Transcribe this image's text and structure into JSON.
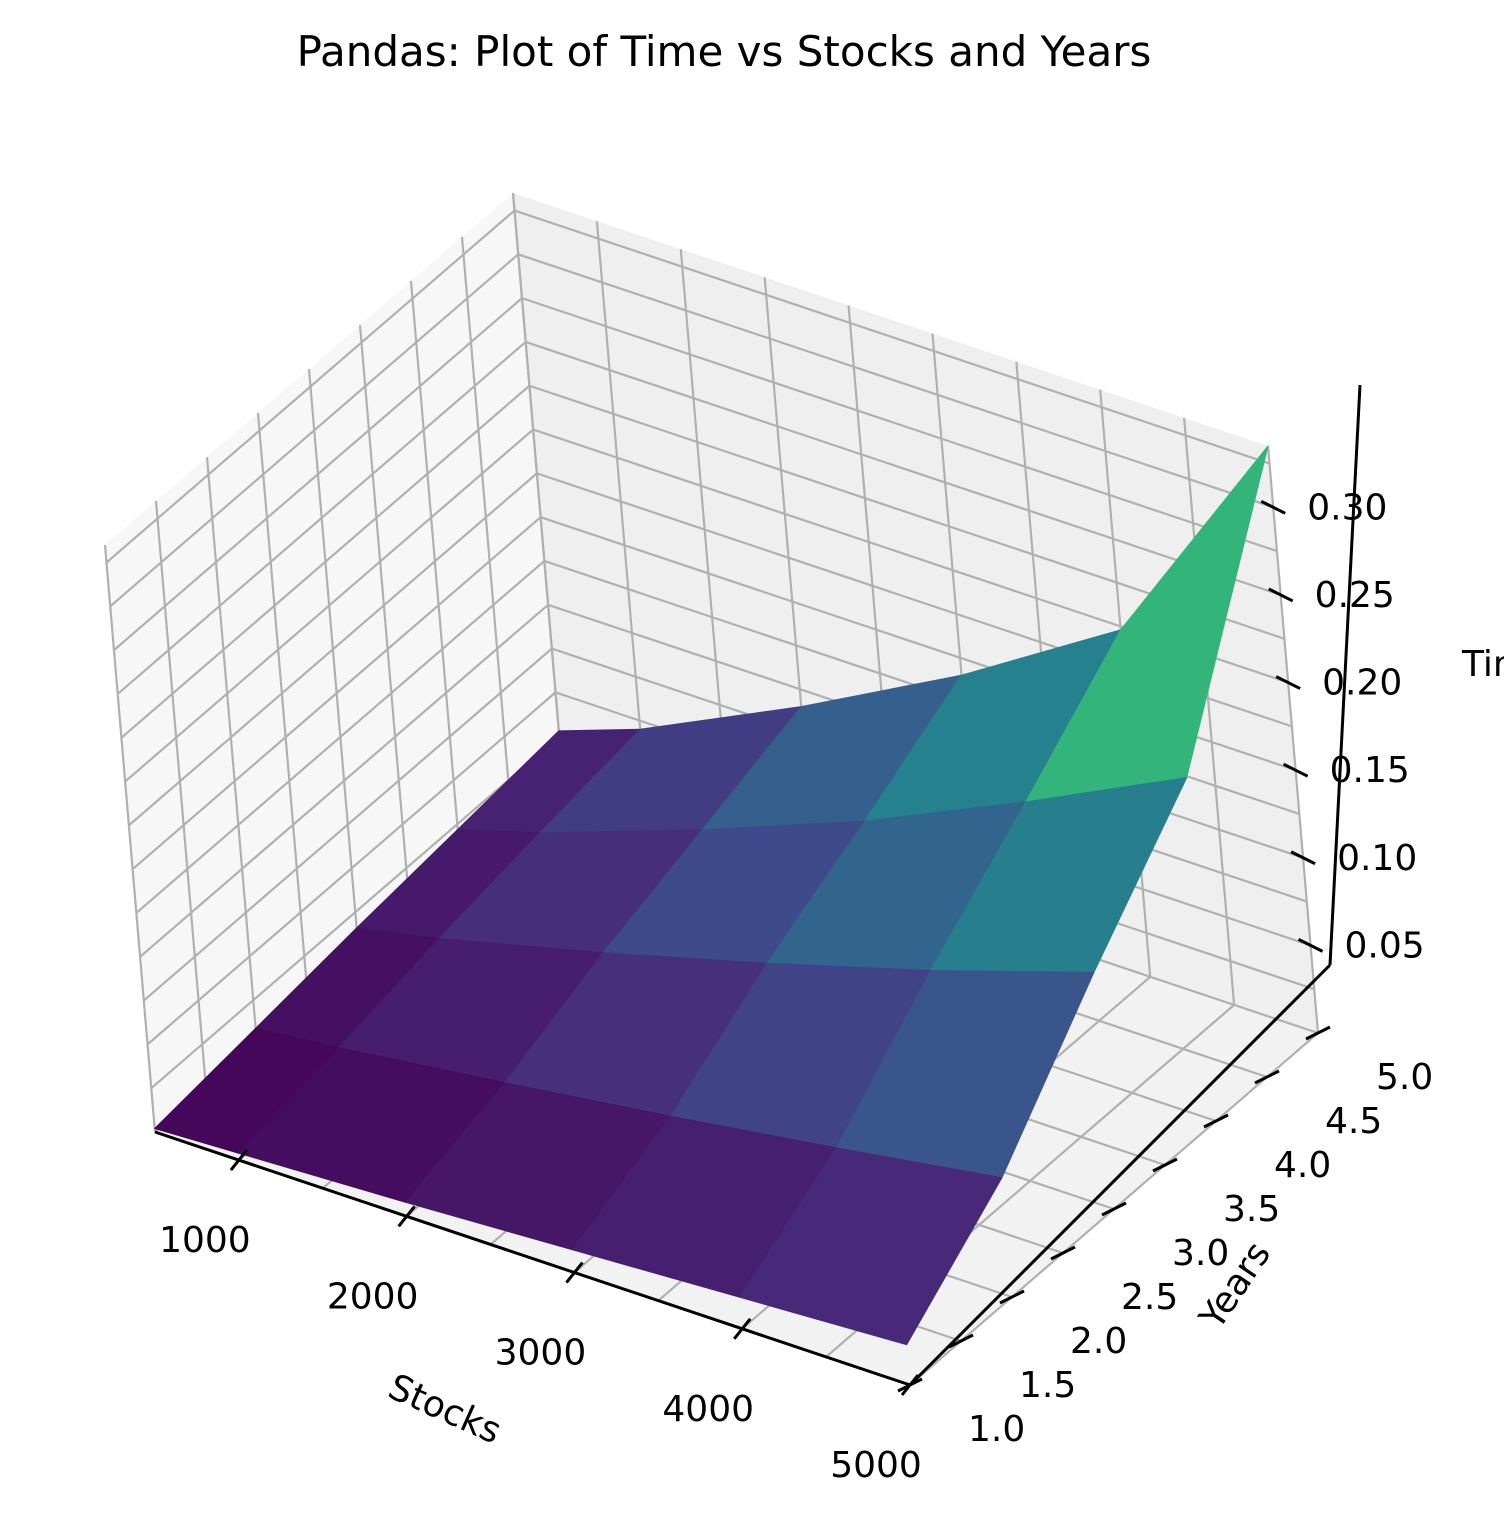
{
  "chart_data": {
    "type": "surface",
    "title": "Pandas: Plot of Time vs Stocks and Years",
    "xlabel": "Stocks",
    "ylabel": "Years",
    "zlabel": "Time",
    "colormap": "viridis",
    "stocks": [
      500,
      1000,
      2000,
      3000,
      4000,
      5000
    ],
    "years": [
      1,
      2,
      3,
      4,
      5
    ],
    "time": [
      [
        0.002,
        0.004,
        0.008,
        0.013,
        0.018,
        0.023
      ],
      [
        0.009,
        0.014,
        0.026,
        0.039,
        0.053,
        0.068
      ],
      [
        0.016,
        0.026,
        0.05,
        0.076,
        0.104,
        0.135
      ],
      [
        0.022,
        0.036,
        0.07,
        0.107,
        0.15,
        0.196
      ],
      [
        0.028,
        0.045,
        0.09,
        0.14,
        0.198,
        0.335
      ]
    ],
    "x_ticks": [
      "1000",
      "2000",
      "3000",
      "4000",
      "5000"
    ],
    "y_ticks": [
      "1.0",
      "1.5",
      "2.0",
      "2.5",
      "3.0",
      "3.5",
      "4.0",
      "4.5",
      "5.0"
    ],
    "z_ticks": [
      "0.05",
      "0.10",
      "0.15",
      "0.20",
      "0.25",
      "0.30"
    ],
    "xlim": [
      500,
      5000
    ],
    "ylim": [
      1,
      5
    ],
    "zlim": [
      0.0,
      0.335
    ],
    "grid": true
  }
}
